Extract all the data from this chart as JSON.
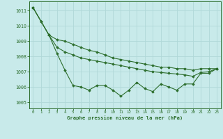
{
  "title": "Graphe pression niveau de la mer (hPa)",
  "background_color": "#c8eaea",
  "grid_color": "#b0d8d8",
  "line_color": "#2d6e2d",
  "xlim": [
    -0.5,
    23.5
  ],
  "ylim": [
    1004.6,
    1011.6
  ],
  "yticks": [
    1005,
    1006,
    1007,
    1008,
    1009,
    1010,
    1011
  ],
  "xticks": [
    0,
    1,
    2,
    3,
    4,
    5,
    6,
    7,
    8,
    9,
    10,
    11,
    12,
    13,
    14,
    15,
    16,
    17,
    18,
    19,
    20,
    21,
    22,
    23
  ],
  "series": [
    [
      1011.2,
      1010.3,
      1009.4,
      1008.2,
      1007.1,
      1006.1,
      1006.0,
      1005.8,
      1006.1,
      1006.1,
      1005.8,
      1005.4,
      1005.8,
      1006.3,
      1005.9,
      1005.7,
      1006.2,
      1006.0,
      1005.8,
      1006.2,
      1006.2,
      1006.9,
      1006.9,
      1007.2
    ],
    [
      1011.2,
      1010.3,
      1009.4,
      1009.1,
      1009.0,
      1008.8,
      1008.6,
      1008.4,
      1008.3,
      1008.1,
      1007.9,
      1007.8,
      1007.7,
      1007.6,
      1007.5,
      1007.4,
      1007.3,
      1007.3,
      1007.2,
      1007.2,
      1007.1,
      1007.2,
      1007.2,
      1007.2
    ],
    [
      1011.2,
      1010.3,
      1009.4,
      1008.6,
      1008.3,
      1008.1,
      1007.9,
      1007.8,
      1007.7,
      1007.6,
      1007.5,
      1007.4,
      1007.3,
      1007.2,
      1007.1,
      1007.0,
      1006.95,
      1006.9,
      1006.85,
      1006.8,
      1006.7,
      1006.95,
      1007.0,
      1007.2
    ]
  ]
}
